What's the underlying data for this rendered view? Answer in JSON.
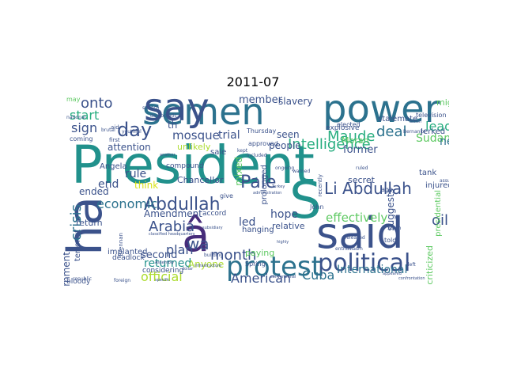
{
  "title": "2011-07",
  "palette": {
    "dark_purple": "#472c7a",
    "indigo": "#3b528b",
    "blue": "#2c728e",
    "teal": "#21918c",
    "green": "#28ae80",
    "light_green": "#5ec962",
    "yellow_green": "#addc30",
    "yellow": "#d8e219"
  },
  "words": [
    {
      "text": "President",
      "color": "#21918c"
    },
    {
      "text": "ha",
      "color": "#3b528b"
    },
    {
      "text": "semen",
      "color": "#2c728e"
    },
    {
      "text": "power",
      "color": "#2c728e"
    },
    {
      "text": "say",
      "color": "#3b528b"
    },
    {
      "text": "S",
      "color": "#21918c"
    },
    {
      "text": "â",
      "color": "#472c7a"
    },
    {
      "text": "said",
      "color": "#3b528b"
    },
    {
      "text": "protest",
      "color": "#2c728e"
    },
    {
      "text": "political",
      "color": "#3b528b"
    },
    {
      "text": "Abdullah",
      "color": "#3b528b"
    },
    {
      "text": "Li Abdullah",
      "color": "#3b528b"
    },
    {
      "text": "Pale",
      "color": "#3b528b"
    },
    {
      "text": "day",
      "color": "#3b528b"
    },
    {
      "text": "onto",
      "color": "#3b528b"
    },
    {
      "text": "start",
      "color": "#28ae80"
    },
    {
      "text": "sign",
      "color": "#3b528b"
    },
    {
      "text": "economic",
      "color": "#2c728e"
    },
    {
      "text": "crisis",
      "color": "#2c728e"
    },
    {
      "text": "Arabia",
      "color": "#3b528b"
    },
    {
      "text": "month",
      "color": "#3b528b"
    },
    {
      "text": "Intelligence",
      "color": "#28ae80"
    },
    {
      "text": "Maude",
      "color": "#28ae80"
    },
    {
      "text": "deal",
      "color": "#2c728e"
    },
    {
      "text": "leader",
      "color": "#28ae80"
    },
    {
      "text": "Sudan",
      "color": "#5ec962"
    },
    {
      "text": "new",
      "color": "#2c728e"
    },
    {
      "text": "oil",
      "color": "#3b528b"
    },
    {
      "text": "effectively",
      "color": "#5ec962"
    },
    {
      "text": "American",
      "color": "#3b528b"
    },
    {
      "text": "official",
      "color": "#addc30"
    },
    {
      "text": "Cuba",
      "color": "#2c728e"
    },
    {
      "text": "International",
      "color": "#2c728e"
    },
    {
      "text": "returned",
      "color": "#21918c"
    },
    {
      "text": "plan",
      "color": "#3b528b"
    },
    {
      "text": "wa",
      "color": "#3b528b"
    },
    {
      "text": "mosque",
      "color": "#3b528b"
    },
    {
      "text": "trial",
      "color": "#3b528b"
    },
    {
      "text": "seen",
      "color": "#3b528b"
    },
    {
      "text": "people",
      "color": "#3b528b"
    },
    {
      "text": "former",
      "color": "#3b528b"
    },
    {
      "text": "member",
      "color": "#3b528b"
    },
    {
      "text": "slavery",
      "color": "#3b528b"
    },
    {
      "text": "government",
      "color": "#3b528b"
    },
    {
      "text": "rule",
      "color": "#3b528b"
    },
    {
      "text": "end",
      "color": "#3b528b"
    },
    {
      "text": "hope",
      "color": "#3b528b"
    },
    {
      "text": "led",
      "color": "#3b528b"
    },
    {
      "text": "second",
      "color": "#3b528b"
    },
    {
      "text": "Anyone",
      "color": "#addc30"
    },
    {
      "text": "Amendment",
      "color": "#3b528b"
    },
    {
      "text": "think",
      "color": "#d8e219"
    },
    {
      "text": "ended",
      "color": "#3b528b"
    },
    {
      "text": "attention",
      "color": "#3b528b"
    },
    {
      "text": "Moran",
      "color": "#5ec962"
    },
    {
      "text": "might",
      "color": "#5ec962"
    },
    {
      "text": "Jerked",
      "color": "#3b528b"
    },
    {
      "text": "stalemate",
      "color": "#3b528b"
    },
    {
      "text": "tank",
      "color": "#3b528b"
    },
    {
      "text": "injured",
      "color": "#3b528b"
    },
    {
      "text": "secret",
      "color": "#3b528b"
    },
    {
      "text": "suggests",
      "color": "#3b528b"
    },
    {
      "text": "criticized",
      "color": "#5ec962"
    },
    {
      "text": "relative",
      "color": "#3b528b"
    },
    {
      "text": "paying",
      "color": "#5ec962"
    },
    {
      "text": "hanging",
      "color": "#3b528b"
    },
    {
      "text": "mixed",
      "color": "#5ec962"
    },
    {
      "text": "sale",
      "color": "#3b528b"
    },
    {
      "text": "Chancellor",
      "color": "#3b528b"
    },
    {
      "text": "unlikely",
      "color": "#addc30"
    },
    {
      "text": "compound",
      "color": "#3b528b"
    },
    {
      "text": "return",
      "color": "#3b528b"
    },
    {
      "text": "terrorist",
      "color": "#3b528b"
    },
    {
      "text": "Angela",
      "color": "#3b528b"
    },
    {
      "text": "implanted",
      "color": "#3b528b"
    },
    {
      "text": "deadlock",
      "color": "#3b528b"
    },
    {
      "text": "considering",
      "color": "#3b528b"
    },
    {
      "text": "bloody",
      "color": "#3b528b"
    },
    {
      "text": "coming",
      "color": "#3b528b"
    },
    {
      "text": "th",
      "color": "#3b528b"
    },
    {
      "text": "Thursday",
      "color": "#3b528b"
    },
    {
      "text": "explosive",
      "color": "#3b528b"
    },
    {
      "text": "elected",
      "color": "#3b528b"
    },
    {
      "text": "television",
      "color": "#3b528b"
    },
    {
      "text": "approved",
      "color": "#3b528b"
    },
    {
      "text": "prolonged",
      "color": "#3b528b"
    },
    {
      "text": "accord",
      "color": "#3b528b"
    },
    {
      "text": "told",
      "color": "#3b528b"
    },
    {
      "text": "John",
      "color": "#3b528b"
    },
    {
      "text": "ago",
      "color": "#3b528b"
    },
    {
      "text": "presidential",
      "color": "#5ec962"
    },
    {
      "text": "Spring",
      "color": "#3b528b"
    },
    {
      "text": "give",
      "color": "#3b528b"
    },
    {
      "text": "may",
      "color": "#5ec962"
    },
    {
      "text": "aid",
      "color": "#3b528b"
    },
    {
      "text": "first",
      "color": "#3b528b"
    },
    {
      "text": "speech",
      "color": "#3b528b"
    },
    {
      "text": "republic",
      "color": "#3b528b"
    },
    {
      "text": "foreign",
      "color": "#3b528b"
    },
    {
      "text": "Brennan",
      "color": "#3b528b"
    },
    {
      "text": "enthusiasm",
      "color": "#3b528b"
    },
    {
      "text": "included",
      "color": "#3b528b"
    },
    {
      "text": "kept",
      "color": "#3b528b"
    },
    {
      "text": "classified headquarters",
      "color": "#3b528b"
    },
    {
      "text": "subsidiary",
      "color": "#3b528b"
    },
    {
      "text": "youthful",
      "color": "#3b528b"
    },
    {
      "text": "recently",
      "color": "#3b528b"
    },
    {
      "text": "brutal",
      "color": "#3b528b"
    },
    {
      "text": "democratic",
      "color": "#3b528b"
    },
    {
      "text": "building",
      "color": "#3b528b"
    },
    {
      "text": "infrastructure",
      "color": "#3b528b"
    },
    {
      "text": "dollar",
      "color": "#3b528b"
    },
    {
      "text": "specific",
      "color": "#3b528b"
    },
    {
      "text": "national",
      "color": "#3b528b"
    },
    {
      "text": "billion",
      "color": "#3b528b"
    },
    {
      "text": "assured",
      "color": "#3b528b"
    },
    {
      "text": "ongoing",
      "color": "#3b528b"
    },
    {
      "text": "released",
      "color": "#3b528b"
    },
    {
      "text": "confrontation",
      "color": "#3b528b"
    },
    {
      "text": "highly",
      "color": "#3b528b"
    },
    {
      "text": "another",
      "color": "#3b528b"
    },
    {
      "text": "Assembly",
      "color": "#3b528b"
    },
    {
      "text": "South",
      "color": "#3b528b"
    },
    {
      "text": "ruled",
      "color": "#3b528b"
    },
    {
      "text": "warned",
      "color": "#3b528b"
    },
    {
      "text": "left",
      "color": "#3b528b"
    },
    {
      "text": "Bernanke",
      "color": "#3b528b"
    },
    {
      "text": "administration",
      "color": "#3b528b"
    },
    {
      "text": "Turkey",
      "color": "#3b528b"
    },
    {
      "text": "conventional",
      "color": "#3b528b"
    },
    {
      "text": "appeared",
      "color": "#3b528b"
    }
  ]
}
